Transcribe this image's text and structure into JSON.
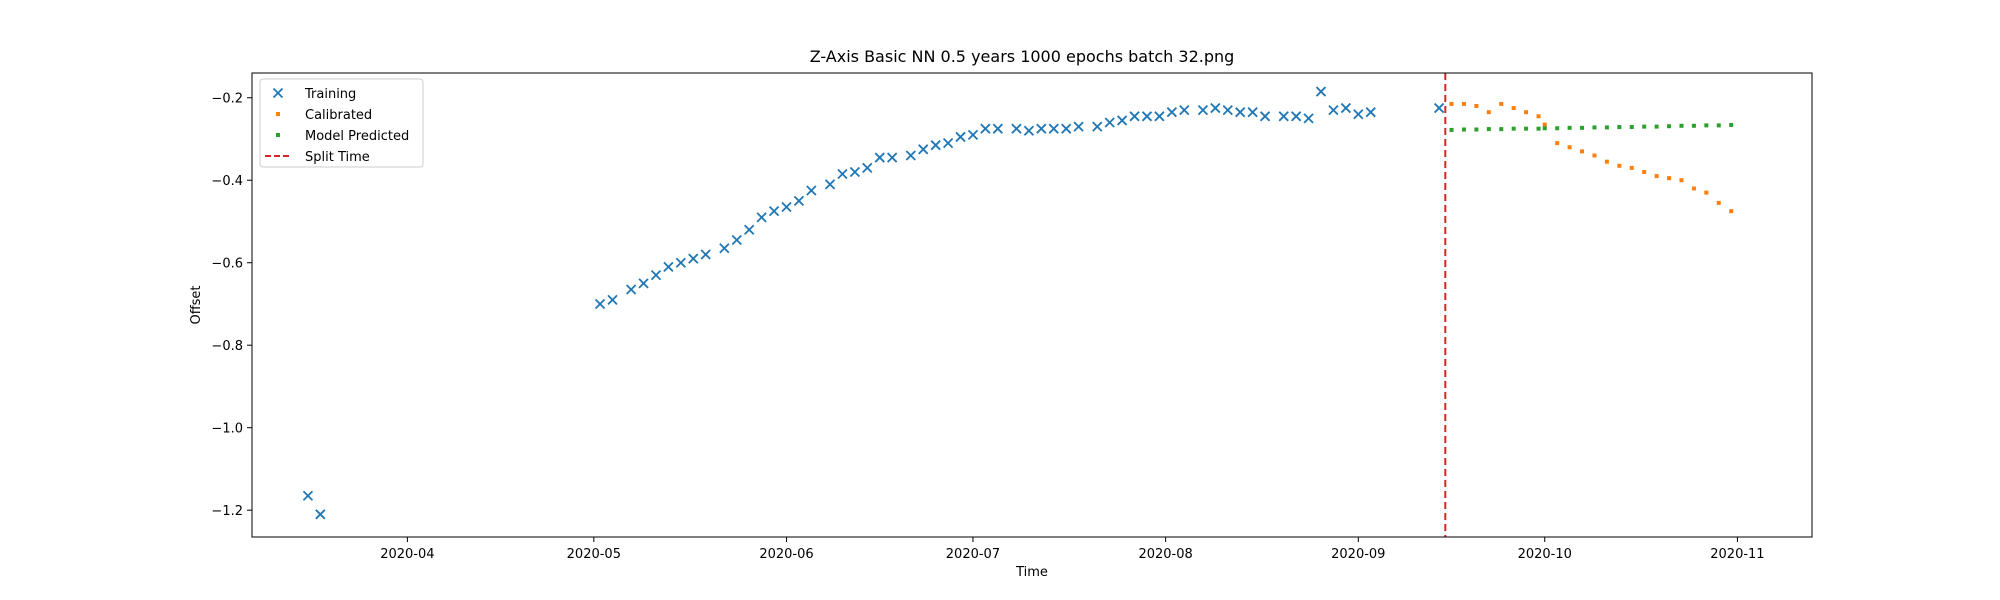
{
  "chart_data": {
    "type": "scatter",
    "title": "Z-Axis Basic NN 0.5 years 1000 epochs batch 32.png",
    "xlabel": "Time",
    "ylabel": "Offset",
    "x_type": "date",
    "xlim": [
      "2020-03-07",
      "2020-11-13"
    ],
    "ylim": [
      -1.265,
      -0.14
    ],
    "x_ticks": [
      "2020-04-01",
      "2020-05-01",
      "2020-06-01",
      "2020-07-01",
      "2020-08-01",
      "2020-09-01",
      "2020-10-01",
      "2020-11-01"
    ],
    "x_tick_labels": [
      "2020-04",
      "2020-05",
      "2020-06",
      "2020-07",
      "2020-08",
      "2020-09",
      "2020-10",
      "2020-11"
    ],
    "y_ticks": [
      -1.2,
      -1.0,
      -0.8,
      -0.6,
      -0.4,
      -0.2
    ],
    "y_tick_labels": [
      "−1.2",
      "−1.0",
      "−0.8",
      "−0.6",
      "−0.4",
      "−0.2"
    ],
    "grid": false,
    "legend_position": "top-left",
    "split_time": "2020-09-15",
    "series": [
      {
        "name": "Training",
        "marker": "x",
        "color": "#1f77b4",
        "x": [
          "2020-03-16",
          "2020-03-18",
          "2020-05-02",
          "2020-05-04",
          "2020-05-07",
          "2020-05-09",
          "2020-05-11",
          "2020-05-13",
          "2020-05-15",
          "2020-05-17",
          "2020-05-19",
          "2020-05-22",
          "2020-05-24",
          "2020-05-26",
          "2020-05-28",
          "2020-05-30",
          "2020-06-01",
          "2020-06-03",
          "2020-06-05",
          "2020-06-08",
          "2020-06-10",
          "2020-06-12",
          "2020-06-14",
          "2020-06-16",
          "2020-06-18",
          "2020-06-21",
          "2020-06-23",
          "2020-06-25",
          "2020-06-27",
          "2020-06-29",
          "2020-07-01",
          "2020-07-03",
          "2020-07-05",
          "2020-07-08",
          "2020-07-10",
          "2020-07-12",
          "2020-07-14",
          "2020-07-16",
          "2020-07-18",
          "2020-07-21",
          "2020-07-23",
          "2020-07-25",
          "2020-07-27",
          "2020-07-29",
          "2020-07-31",
          "2020-08-02",
          "2020-08-04",
          "2020-08-07",
          "2020-08-09",
          "2020-08-11",
          "2020-08-13",
          "2020-08-15",
          "2020-08-17",
          "2020-08-20",
          "2020-08-22",
          "2020-08-24",
          "2020-08-26",
          "2020-08-28",
          "2020-08-30",
          "2020-09-01",
          "2020-09-03",
          "2020-09-14"
        ],
        "y": [
          -1.165,
          -1.21,
          -0.7,
          -0.69,
          -0.665,
          -0.65,
          -0.63,
          -0.61,
          -0.6,
          -0.59,
          -0.58,
          -0.565,
          -0.545,
          -0.52,
          -0.49,
          -0.475,
          -0.465,
          -0.45,
          -0.425,
          -0.41,
          -0.385,
          -0.38,
          -0.37,
          -0.345,
          -0.345,
          -0.34,
          -0.325,
          -0.315,
          -0.31,
          -0.295,
          -0.29,
          -0.275,
          -0.275,
          -0.275,
          -0.28,
          -0.275,
          -0.275,
          -0.275,
          -0.27,
          -0.27,
          -0.26,
          -0.255,
          -0.245,
          -0.245,
          -0.245,
          -0.235,
          -0.23,
          -0.23,
          -0.225,
          -0.23,
          -0.235,
          -0.235,
          -0.245,
          -0.245,
          -0.245,
          -0.25,
          -0.185,
          -0.23,
          -0.225,
          -0.24,
          -0.235,
          -0.225
        ]
      },
      {
        "name": "Calibrated",
        "marker": "dot",
        "color": "#ff7f0e",
        "x": [
          "2020-09-16",
          "2020-09-18",
          "2020-09-20",
          "2020-09-22",
          "2020-09-24",
          "2020-09-26",
          "2020-09-28",
          "2020-09-30",
          "2020-10-01",
          "2020-10-03",
          "2020-10-05",
          "2020-10-07",
          "2020-10-09",
          "2020-10-11",
          "2020-10-13",
          "2020-10-15",
          "2020-10-17",
          "2020-10-19",
          "2020-10-21",
          "2020-10-23",
          "2020-10-25",
          "2020-10-27",
          "2020-10-29",
          "2020-10-31"
        ],
        "y": [
          -0.215,
          -0.215,
          -0.22,
          -0.235,
          -0.215,
          -0.225,
          -0.235,
          -0.245,
          -0.265,
          -0.31,
          -0.32,
          -0.33,
          -0.34,
          -0.355,
          -0.365,
          -0.37,
          -0.38,
          -0.39,
          -0.395,
          -0.4,
          -0.42,
          -0.43,
          -0.455,
          -0.475
        ]
      },
      {
        "name": "Model Predicted",
        "marker": "dot",
        "color": "#2ca02c",
        "x": [
          "2020-09-16",
          "2020-09-18",
          "2020-09-20",
          "2020-09-22",
          "2020-09-24",
          "2020-09-26",
          "2020-09-28",
          "2020-09-30",
          "2020-10-01",
          "2020-10-03",
          "2020-10-05",
          "2020-10-07",
          "2020-10-09",
          "2020-10-11",
          "2020-10-13",
          "2020-10-15",
          "2020-10-17",
          "2020-10-19",
          "2020-10-21",
          "2020-10-23",
          "2020-10-25",
          "2020-10-27",
          "2020-10-29",
          "2020-10-31"
        ],
        "y": [
          -0.278,
          -0.277,
          -0.277,
          -0.276,
          -0.276,
          -0.275,
          -0.275,
          -0.275,
          -0.274,
          -0.274,
          -0.273,
          -0.273,
          -0.272,
          -0.272,
          -0.271,
          -0.271,
          -0.27,
          -0.27,
          -0.269,
          -0.268,
          -0.268,
          -0.267,
          -0.267,
          -0.266
        ]
      },
      {
        "name": "Split Time",
        "marker": "dashed-line",
        "color": "#d62728"
      }
    ]
  }
}
